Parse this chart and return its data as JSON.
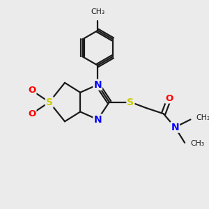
{
  "background_color": "#ebebeb",
  "bond_color": "#1a1a1a",
  "atom_colors": {
    "S": "#cccc00",
    "N": "#0000ff",
    "O": "#ff0000",
    "C": "#1a1a1a"
  },
  "figsize": [
    3.0,
    3.0
  ],
  "dpi": 100,
  "xlim": [
    0,
    10
  ],
  "ylim": [
    0,
    10
  ]
}
